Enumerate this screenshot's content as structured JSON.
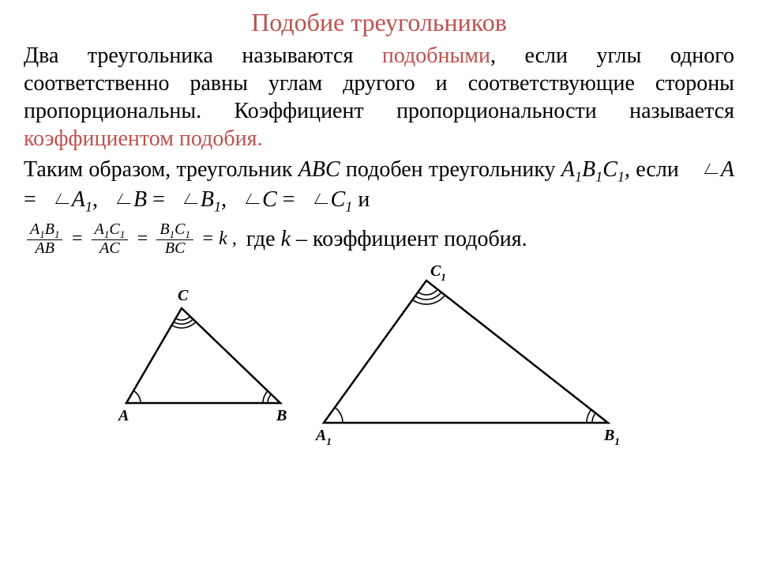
{
  "title": {
    "text": "Подобие треугольников",
    "color": "#c0504d"
  },
  "highlight_color": "#c0504d",
  "definition": {
    "part1": "Два треугольника называются ",
    "highlight1": "подобными",
    "part2": ", если углы одного соответственно равны углам другого и соответствующие стороны пропорциональны. Коэффициент пропорциональности называется ",
    "highlight2": "коэффициентом подобия.",
    "part3": ""
  },
  "condition": {
    "lead": "Таким образом, треугольник ",
    "t1": "ABC",
    "mid1": " подобен треугольнику ",
    "t2_a": "A",
    "t2_b": "B",
    "t2_c": "C",
    "if_text": ", если",
    "eqA_l": "A",
    "eqA_r": "A",
    "eqB_l": "B",
    "eqB_r": "B",
    "eqC_l": "C",
    "eqC_r": "C",
    "sub1": "1",
    "and": " и"
  },
  "ratio": {
    "f1_num_a": "A",
    "f1_num_b": "B",
    "f1_den": "AB",
    "f2_num_a": "A",
    "f2_num_c": "C",
    "f2_den": "AC",
    "f3_num_b": "B",
    "f3_num_c": "C",
    "f3_den": "BC",
    "eq": "=",
    "k": "k",
    "comma": ",",
    "tail_pre": " где ",
    "tail_k": "k",
    "tail_post": " – коэффициент подобия.",
    "sub1": "1"
  },
  "diagram": {
    "small": {
      "A": "A",
      "B": "B",
      "C": "C"
    },
    "large": {
      "A": "A",
      "B": "B",
      "C": "C",
      "sub": "1"
    },
    "stroke": "#000000",
    "label_font": "italic bold 20px 'Times New Roman'"
  }
}
